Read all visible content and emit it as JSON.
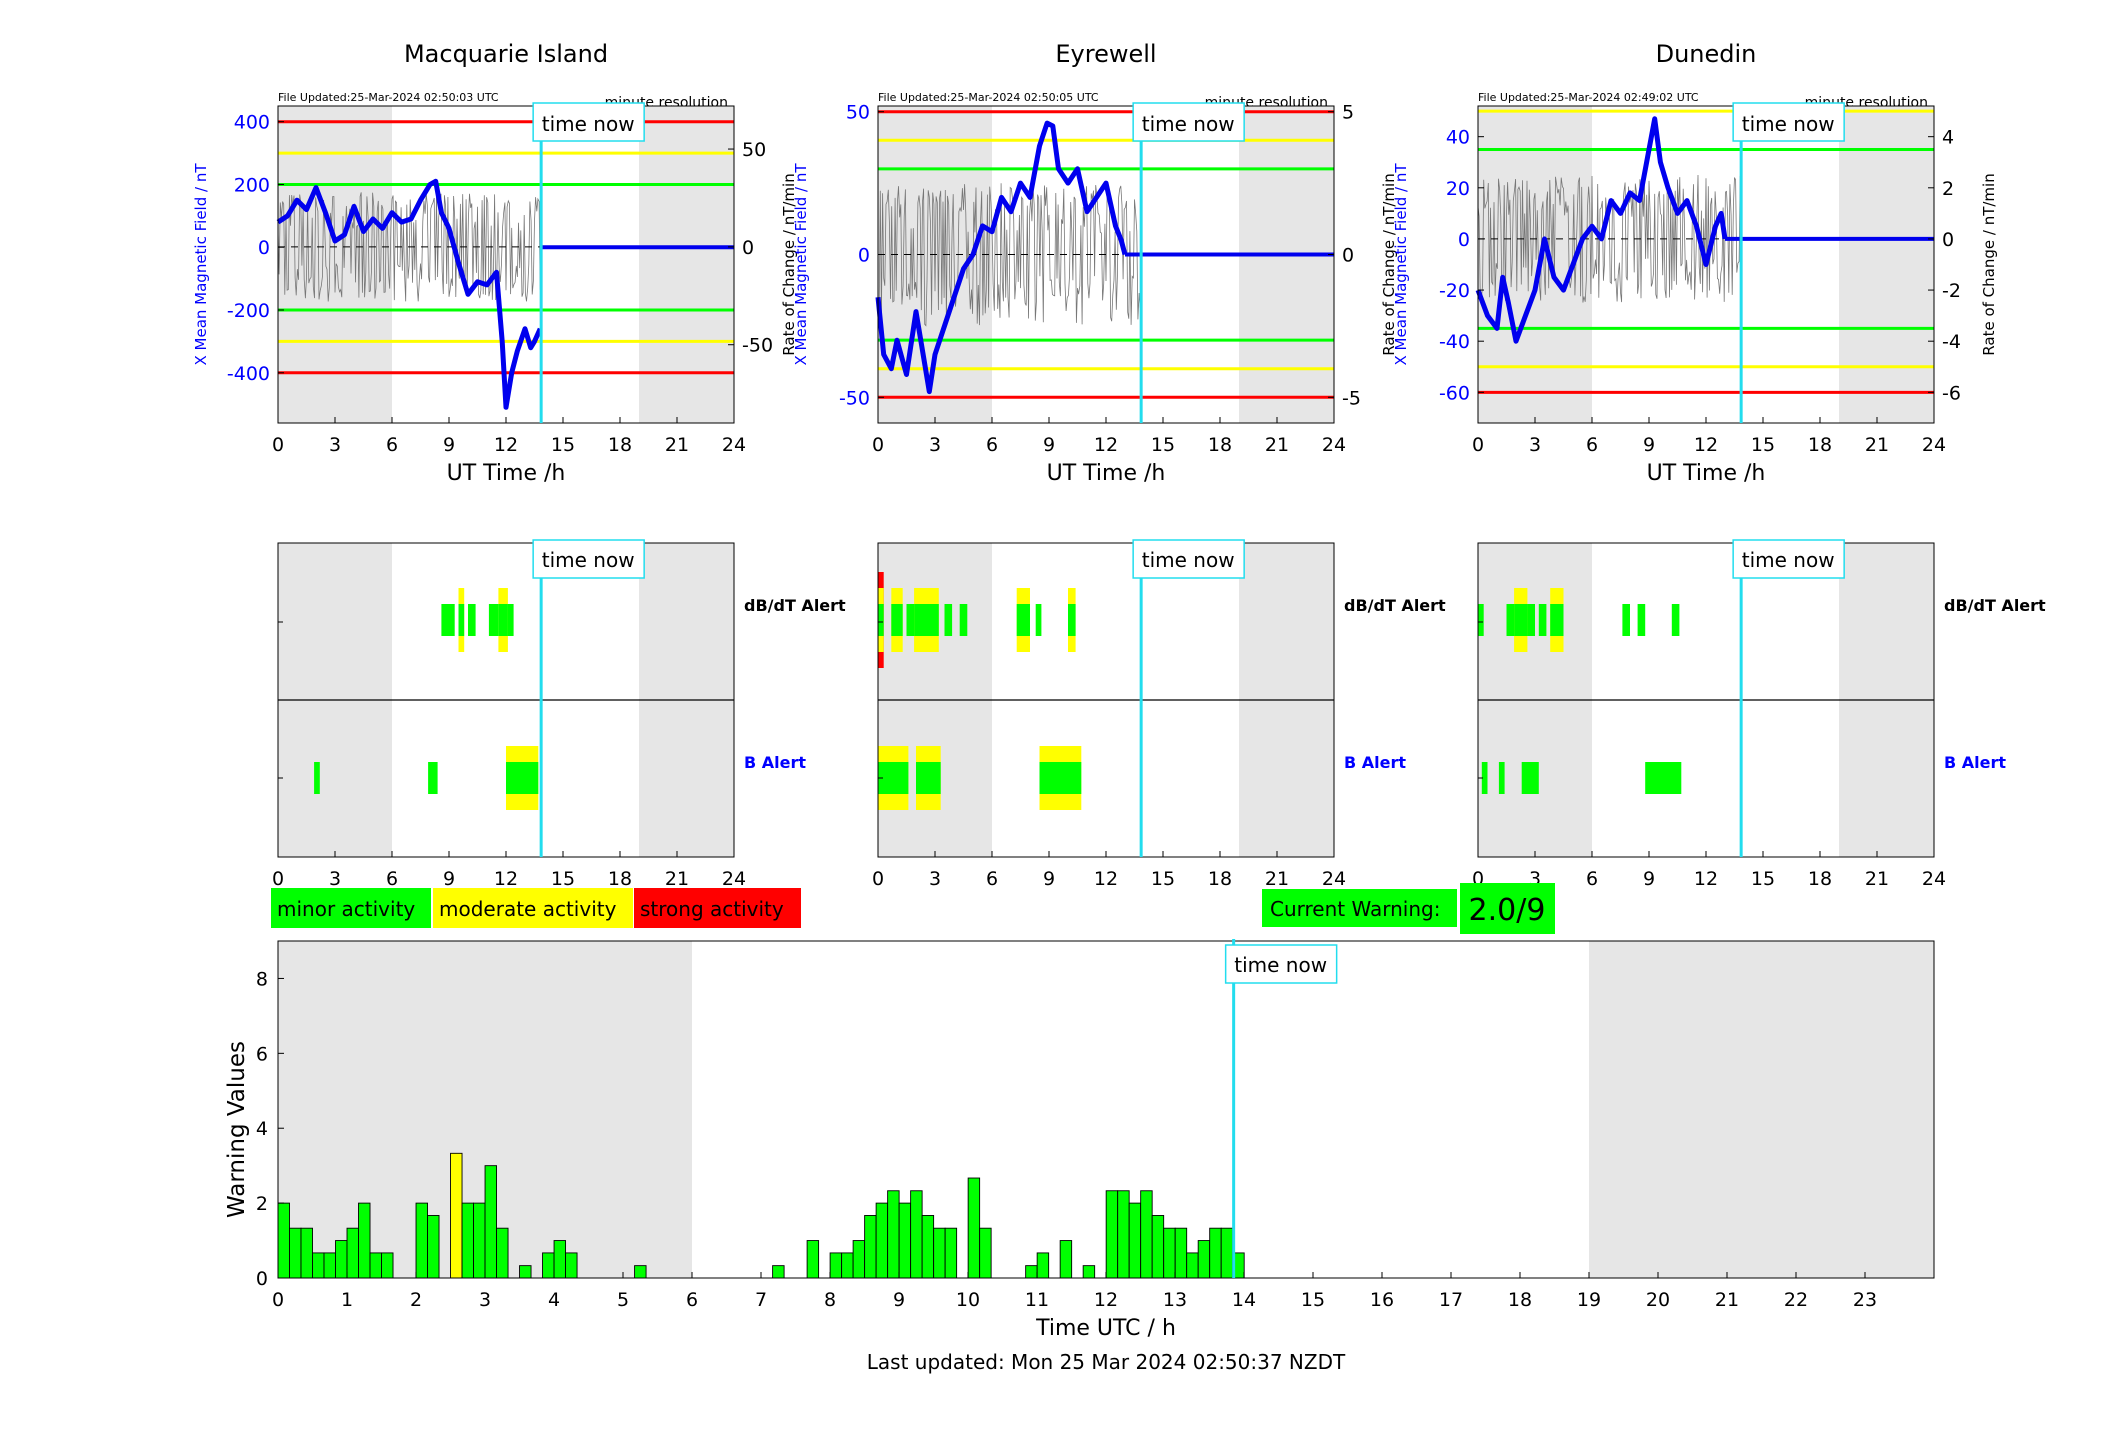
{
  "chart_data": {
    "type": "mixed",
    "stations": [
      {
        "title": "Macquarie Island",
        "file_updated": "File Updated:25-Mar-2024 02:50:03 UTC",
        "resolution": "minute resolution",
        "ylabel_left": "X Mean Magnetic Field / nT",
        "ylabel_right": "Rate of Change / nT/min",
        "left_ticks": [
          -400,
          -200,
          0,
          200,
          400
        ],
        "right_ticks": [
          -50,
          0,
          50
        ],
        "ylim_left": [
          -560,
          450
        ],
        "ylim_right": [
          -90,
          72
        ],
        "thresholds_left": [
          {
            "value": 400,
            "level": "strong"
          },
          {
            "value": 300,
            "level": "moderate"
          },
          {
            "value": 200,
            "level": "minor"
          },
          {
            "value": -200,
            "level": "minor"
          },
          {
            "value": -300,
            "level": "moderate"
          },
          {
            "value": -400,
            "level": "strong"
          }
        ],
        "field_series": {
          "t": [
            0,
            0.5,
            1,
            1.5,
            2,
            2.5,
            3,
            3.5,
            4,
            4.5,
            5,
            5.5,
            6,
            6.5,
            7,
            7.5,
            8,
            8.3,
            8.6,
            9,
            9.5,
            10,
            10.5,
            11,
            11.5,
            11.8,
            12,
            12.3,
            12.6,
            13,
            13.3,
            13.5,
            13.8
          ],
          "v": [
            80,
            100,
            150,
            120,
            190,
            110,
            20,
            40,
            130,
            50,
            90,
            60,
            110,
            80,
            90,
            150,
            200,
            210,
            110,
            60,
            -50,
            -150,
            -110,
            -120,
            -80,
            -300,
            -510,
            -400,
            -330,
            -260,
            -320,
            -300,
            -260
          ]
        },
        "roc_amplitude": 28,
        "dbdt_alert": [
          {
            "t0": 8.6,
            "t1": 9.3,
            "level": "minor"
          },
          {
            "t0": 9.5,
            "t1": 9.8,
            "level": "moderate"
          },
          {
            "t0": 10.0,
            "t1": 10.4,
            "level": "minor"
          },
          {
            "t0": 11.1,
            "t1": 11.6,
            "level": "minor"
          },
          {
            "t0": 11.6,
            "t1": 12.1,
            "level": "moderate"
          },
          {
            "t0": 12.1,
            "t1": 12.4,
            "level": "minor"
          }
        ],
        "b_alert": [
          {
            "t0": 1.9,
            "t1": 2.2,
            "level": "minor"
          },
          {
            "t0": 7.9,
            "t1": 8.4,
            "level": "minor"
          },
          {
            "t0": 12.0,
            "t1": 13.7,
            "level": "moderate"
          }
        ]
      },
      {
        "title": "Eyrewell",
        "file_updated": "File Updated:25-Mar-2024 02:50:05 UTC",
        "resolution": "minute resolution",
        "ylabel_left": "X Mean Magnetic Field / nT",
        "ylabel_right": "Rate of Change / nT/min",
        "left_ticks": [
          -50,
          0,
          50
        ],
        "right_ticks": [
          -5,
          0,
          5
        ],
        "ylim_left": [
          -59,
          52
        ],
        "ylim_right": [
          -5.9,
          5.2
        ],
        "thresholds_left": [
          {
            "value": 50,
            "level": "strong"
          },
          {
            "value": 40,
            "level": "moderate"
          },
          {
            "value": 30,
            "level": "minor"
          },
          {
            "value": -30,
            "level": "minor"
          },
          {
            "value": -40,
            "level": "moderate"
          },
          {
            "value": -50,
            "level": "strong"
          }
        ],
        "field_series": {
          "t": [
            0,
            0.3,
            0.7,
            1,
            1.5,
            2,
            2.5,
            2.7,
            3,
            3.5,
            4,
            4.5,
            5,
            5.5,
            6,
            6.5,
            7,
            7.5,
            8,
            8.5,
            8.9,
            9.2,
            9.5,
            10,
            10.5,
            11,
            11.5,
            12,
            12.5,
            12.8,
            13
          ],
          "v": [
            -15,
            -35,
            -40,
            -30,
            -42,
            -20,
            -40,
            -48,
            -35,
            -25,
            -15,
            -5,
            0,
            10,
            8,
            20,
            15,
            25,
            20,
            38,
            46,
            45,
            30,
            25,
            30,
            15,
            20,
            25,
            10,
            5,
            0
          ]
        },
        "roc_amplitude": 2.5,
        "dbdt_alert": [
          {
            "t0": 0,
            "t1": 0.3,
            "level": "strong"
          },
          {
            "t0": 0.7,
            "t1": 1.3,
            "level": "moderate"
          },
          {
            "t0": 1.5,
            "t1": 1.9,
            "level": "minor"
          },
          {
            "t0": 1.9,
            "t1": 2.5,
            "level": "moderate"
          },
          {
            "t0": 2.5,
            "t1": 3.2,
            "level": "moderate"
          },
          {
            "t0": 3.5,
            "t1": 3.9,
            "level": "minor"
          },
          {
            "t0": 4.3,
            "t1": 4.7,
            "level": "minor"
          },
          {
            "t0": 7.3,
            "t1": 8.0,
            "level": "moderate"
          },
          {
            "t0": 8.3,
            "t1": 8.6,
            "level": "minor"
          },
          {
            "t0": 10.0,
            "t1": 10.4,
            "level": "moderate"
          }
        ],
        "b_alert": [
          {
            "t0": 0,
            "t1": 1.6,
            "level": "moderate"
          },
          {
            "t0": 2.0,
            "t1": 3.3,
            "level": "moderate"
          },
          {
            "t0": 8.5,
            "t1": 10.7,
            "level": "moderate"
          }
        ]
      },
      {
        "title": "Dunedin",
        "file_updated": "File Updated:25-Mar-2024 02:49:02 UTC",
        "resolution": "minute resolution",
        "ylabel_left": "X Mean Magnetic Field / nT",
        "ylabel_right": "Rate of Change / nT/min",
        "left_ticks": [
          -60,
          -40,
          -20,
          0,
          20,
          40
        ],
        "right_ticks": [
          -6,
          -4,
          -2,
          0,
          2,
          4
        ],
        "ylim_left": [
          -72,
          52
        ],
        "ylim_right": [
          -7.2,
          5.2
        ],
        "thresholds_left": [
          {
            "value": 50,
            "level": "moderate"
          },
          {
            "value": 35,
            "level": "minor"
          },
          {
            "value": -35,
            "level": "minor"
          },
          {
            "value": -50,
            "level": "moderate"
          },
          {
            "value": -60,
            "level": "strong"
          }
        ],
        "field_series": {
          "t": [
            0,
            0.5,
            1,
            1.3,
            1.6,
            2,
            2.5,
            3,
            3.5,
            4,
            4.5,
            5,
            5.5,
            6,
            6.5,
            7,
            7.5,
            8,
            8.5,
            9,
            9.3,
            9.6,
            10,
            10.5,
            11,
            11.5,
            12,
            12.5,
            12.8,
            13
          ],
          "v": [
            -20,
            -30,
            -35,
            -15,
            -25,
            -40,
            -30,
            -20,
            0,
            -15,
            -20,
            -10,
            0,
            5,
            0,
            15,
            10,
            18,
            15,
            35,
            47,
            30,
            20,
            10,
            15,
            5,
            -10,
            5,
            10,
            0
          ]
        },
        "roc_amplitude": 2.5,
        "dbdt_alert": [
          {
            "t0": 0,
            "t1": 0.3,
            "level": "minor"
          },
          {
            "t0": 1.5,
            "t1": 1.9,
            "level": "minor"
          },
          {
            "t0": 1.9,
            "t1": 2.6,
            "level": "moderate"
          },
          {
            "t0": 2.6,
            "t1": 3.0,
            "level": "minor"
          },
          {
            "t0": 3.2,
            "t1": 3.6,
            "level": "minor"
          },
          {
            "t0": 3.8,
            "t1": 4.5,
            "level": "moderate"
          },
          {
            "t0": 7.6,
            "t1": 8.0,
            "level": "minor"
          },
          {
            "t0": 8.4,
            "t1": 8.8,
            "level": "minor"
          },
          {
            "t0": 10.2,
            "t1": 10.6,
            "level": "minor"
          }
        ],
        "b_alert": [
          {
            "t0": 0.2,
            "t1": 0.5,
            "level": "minor"
          },
          {
            "t0": 1.1,
            "t1": 1.4,
            "level": "minor"
          },
          {
            "t0": 2.3,
            "t1": 3.2,
            "level": "minor"
          },
          {
            "t0": 8.8,
            "t1": 10.7,
            "level": "minor"
          }
        ]
      }
    ],
    "xlabel_station": "UT Time /h",
    "x_ticks_station": [
      0,
      3,
      6,
      9,
      12,
      15,
      18,
      21,
      24
    ],
    "xlim": [
      0,
      24
    ],
    "time_now": 13.85,
    "time_now_label": "time now",
    "night_shading": [
      [
        0,
        6
      ],
      [
        19,
        24
      ]
    ],
    "alert_labels": {
      "dbdt": "dB/dT Alert",
      "b": "B Alert"
    },
    "warning_histogram": {
      "type": "bar",
      "bin_width_h": 0.1667,
      "values": [
        2,
        1.33,
        1.33,
        0.67,
        0.67,
        1,
        1.33,
        2,
        0.67,
        0.67,
        0,
        0,
        2,
        1.67,
        0,
        3.33,
        2,
        2,
        3,
        1.33,
        0,
        0.33,
        0,
        0.67,
        1,
        0.67,
        0,
        0,
        0,
        0,
        0,
        0.33,
        0,
        0,
        0,
        0,
        0,
        0,
        0,
        0,
        0,
        0,
        0,
        0.33,
        0,
        0,
        1,
        0,
        0.67,
        0.67,
        1,
        1.67,
        2,
        2.33,
        2,
        2.33,
        1.67,
        1.33,
        1.33,
        0,
        2.67,
        1.33,
        0,
        0,
        0,
        0.33,
        0.67,
        0,
        1,
        0,
        0.33,
        0,
        2.33,
        2.33,
        2,
        2.33,
        1.67,
        1.33,
        1.33,
        0.67,
        1,
        1.33,
        1.33,
        0.67
      ],
      "moderate_bins": [
        15
      ],
      "ylim": [
        0,
        9
      ],
      "y_ticks": [
        0,
        2,
        4,
        6,
        8
      ],
      "x_ticks": [
        0,
        1,
        2,
        3,
        4,
        5,
        6,
        7,
        8,
        9,
        10,
        11,
        12,
        13,
        14,
        15,
        16,
        17,
        18,
        19,
        20,
        21,
        22,
        23
      ],
      "xlabel": "Time UTC / h",
      "ylabel": "Warning Values"
    },
    "legend": {
      "minor": "minor activity",
      "moderate": "moderate activity",
      "strong": "strong activity"
    },
    "current_warning_label": "Current Warning:",
    "current_warning_value": "2.0/9",
    "last_updated": "Last updated: Mon 25 Mar 2024 02:50:37 NZDT"
  },
  "colors": {
    "minor": "#00ff00",
    "moderate": "#ffff00",
    "strong": "#ff0000",
    "field": "#0000ee",
    "time_now": "#22ddee",
    "night": "#e6e6e6",
    "axis_blue": "#0000ff"
  }
}
